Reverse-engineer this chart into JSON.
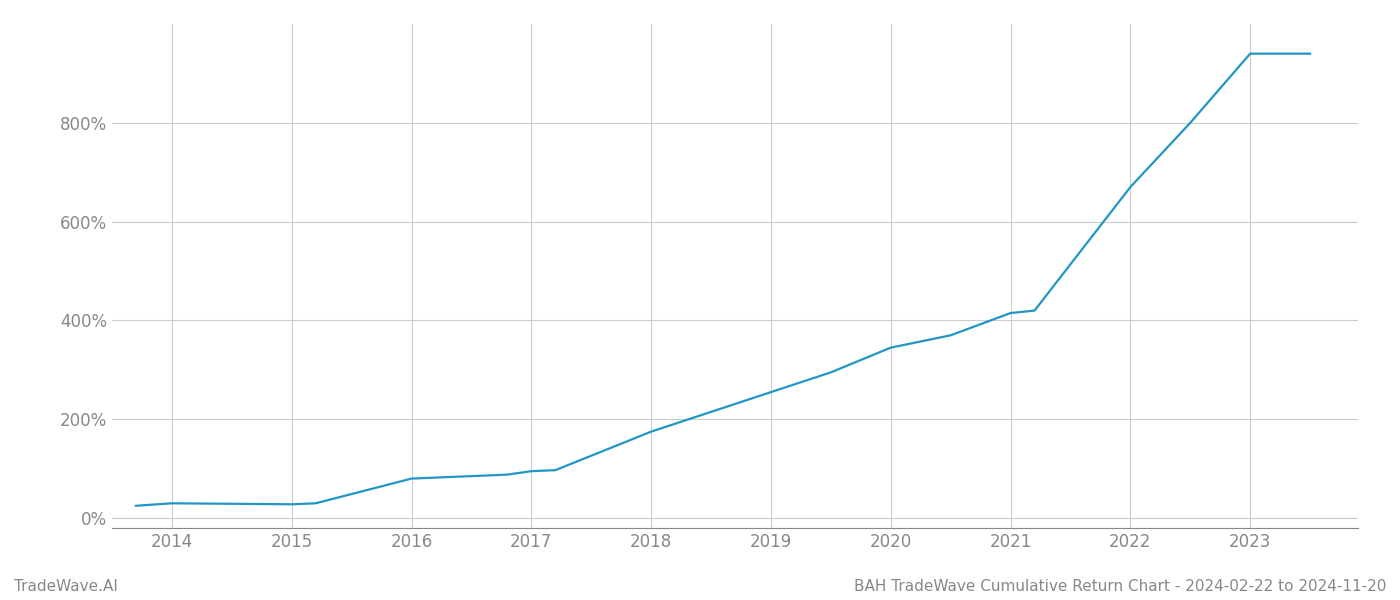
{
  "x_years": [
    2013.7,
    2014.0,
    2015.0,
    2015.2,
    2016.0,
    2016.8,
    2017.0,
    2017.2,
    2018.0,
    2018.5,
    2019.0,
    2019.5,
    2020.0,
    2020.5,
    2021.0,
    2021.2,
    2022.0,
    2022.5,
    2023.0,
    2023.5
  ],
  "y_values": [
    25,
    30,
    28,
    30,
    80,
    88,
    95,
    97,
    175,
    215,
    255,
    295,
    345,
    370,
    415,
    420,
    670,
    800,
    940,
    940
  ],
  "x_ticks": [
    2014,
    2015,
    2016,
    2017,
    2018,
    2019,
    2020,
    2021,
    2022,
    2023
  ],
  "line_color": "#2196c4",
  "line_width": 1.6,
  "bg_color": "#ffffff",
  "grid_color": "#cccccc",
  "tick_color": "#888888",
  "ylabel_ticks": [
    0,
    200,
    400,
    600,
    800
  ],
  "ylim": [
    -20,
    1000
  ],
  "xlim": [
    2013.5,
    2023.9
  ],
  "footer_left": "TradeWave.AI",
  "footer_right": "BAH TradeWave Cumulative Return Chart - 2024-02-22 to 2024-11-20",
  "footer_color": "#888888",
  "footer_fontsize": 11,
  "tick_fontsize": 12
}
